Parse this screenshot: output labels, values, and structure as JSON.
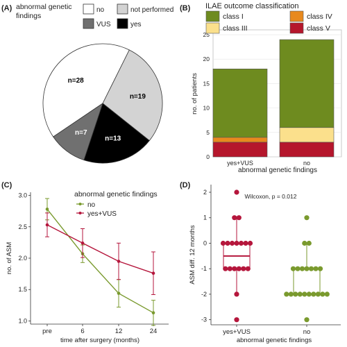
{
  "panel_labels": [
    "(A)",
    "(B)",
    "(C)",
    "(D)"
  ],
  "colors": {
    "class_I": "#6e8b1f",
    "class_III": "#fbe08c",
    "class_IV": "#e8891e",
    "class_V": "#b5162c",
    "no_line": "#7a9a2e",
    "yes_vus_line": "#b5163c",
    "pie_no": "#ffffff",
    "pie_not_performed": "#d3d3d3",
    "pie_vus": "#707070",
    "pie_yes": "#000000"
  },
  "chart_data": [
    {
      "type": "pie",
      "panel": "(A)",
      "legend_title": "abnormal genetic findings",
      "legend_entries": [
        "no",
        "not performed",
        "VUS",
        "yes"
      ],
      "slices": [
        {
          "label": "no",
          "value": 28,
          "text": "n=28"
        },
        {
          "label": "not performed",
          "value": 19,
          "text": "n=19"
        },
        {
          "label": "yes",
          "value": 13,
          "text": "n=13"
        },
        {
          "label": "VUS",
          "value": 7,
          "text": "n=7"
        }
      ]
    },
    {
      "type": "bar",
      "panel": "(B)",
      "stacked": true,
      "legend_title": "ILAE outcome classification",
      "legend_entries": [
        "class I",
        "class III",
        "class IV",
        "class V"
      ],
      "categories": [
        "yes+VUS",
        "no"
      ],
      "series": [
        {
          "name": "class V",
          "values": [
            3,
            3
          ]
        },
        {
          "name": "class IV",
          "values": [
            1,
            0
          ]
        },
        {
          "name": "class III",
          "values": [
            0,
            3
          ]
        },
        {
          "name": "class I",
          "values": [
            14,
            18
          ]
        }
      ],
      "ylabel": "no. of patients",
      "xlabel": "abnormal genetic findings",
      "ylim": [
        0,
        26
      ],
      "yticks": [
        0,
        5,
        10,
        15,
        20,
        25
      ]
    },
    {
      "type": "line",
      "panel": "(C)",
      "legend_title": "abnormal genetic findings",
      "categories": [
        "pre",
        "6",
        "12",
        "24"
      ],
      "series": [
        {
          "name": "no",
          "values": [
            2.78,
            2.07,
            1.44,
            1.13
          ],
          "err": [
            0.17,
            0.14,
            0.22,
            0.2
          ]
        },
        {
          "name": "yes+VUS",
          "values": [
            2.53,
            2.24,
            1.95,
            1.76
          ],
          "err": [
            0.19,
            0.23,
            0.29,
            0.34
          ]
        }
      ],
      "ylabel": "no. of ASM",
      "xlabel": "time after surgery (months)",
      "ylim": [
        0.95,
        3.05
      ],
      "yticks": [
        1.0,
        1.5,
        2.0,
        2.5,
        3.0
      ],
      "yticklabels": [
        "1.0",
        "1.5",
        "2.0",
        "2.5",
        "3.0"
      ]
    },
    {
      "type": "box",
      "panel": "(D)",
      "annotation": "Wilcoxon, p = 0.012",
      "categories": [
        "yes+VUS",
        "no"
      ],
      "boxes": [
        {
          "name": "yes+VUS",
          "q1": -1,
          "median": -0.5,
          "q3": 0,
          "whisker_low": -2,
          "whisker_high": 1
        },
        {
          "name": "no",
          "q1": -2,
          "median": -1,
          "q3": -1,
          "whisker_low": -2,
          "whisker_high": 0
        }
      ],
      "points": [
        {
          "group": "yes+VUS",
          "values": [
            2,
            1,
            1,
            0,
            0,
            0,
            0,
            0,
            0,
            0,
            -1,
            -1,
            -1,
            -1,
            -1,
            -1,
            -2,
            -3
          ]
        },
        {
          "group": "no",
          "values": [
            1,
            0,
            0,
            -1,
            -1,
            -1,
            -1,
            -1,
            -1,
            -1,
            -2,
            -2,
            -2,
            -2,
            -2,
            -2,
            -2,
            -2,
            -2,
            -2,
            -3
          ]
        }
      ],
      "ylabel": "ASM diff. 12 months",
      "xlabel": "abnormal genetic findings",
      "ylim": [
        -3.2,
        2.3
      ],
      "yticks": [
        -3,
        -2,
        -1,
        0,
        1,
        2
      ]
    }
  ]
}
